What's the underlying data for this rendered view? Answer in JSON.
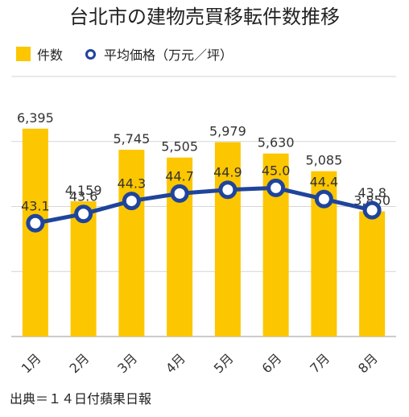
{
  "chart_data": {
    "type": "bar",
    "title": "台北市の建物売買移転件数推移",
    "categories": [
      "1月",
      "2月",
      "3月",
      "4月",
      "5月",
      "6月",
      "7月",
      "8月"
    ],
    "series": [
      {
        "name": "件数",
        "type": "bar",
        "values": [
          6395,
          4159,
          5745,
          5505,
          5979,
          5630,
          5085,
          3850
        ],
        "labels": [
          "6,395",
          "4,159",
          "5,745",
          "5,505",
          "5,979",
          "5,630",
          "5,085",
          "3,850"
        ],
        "color": "#fcc600"
      },
      {
        "name": "平均価格（万元／坪）",
        "type": "line",
        "values": [
          43.1,
          43.6,
          44.3,
          44.7,
          44.9,
          45.0,
          44.4,
          43.8
        ],
        "labels": [
          "43.1",
          "43.6",
          "44.3",
          "44.7",
          "44.9",
          "45.0",
          "44.4",
          "43.8"
        ],
        "color": "#1f449c"
      }
    ],
    "ylim": [
      0,
      8000
    ],
    "y2lim": [
      37,
      51
    ],
    "grid": true,
    "legend": "top-left",
    "source": "出典＝１４日付蘋果日報"
  }
}
